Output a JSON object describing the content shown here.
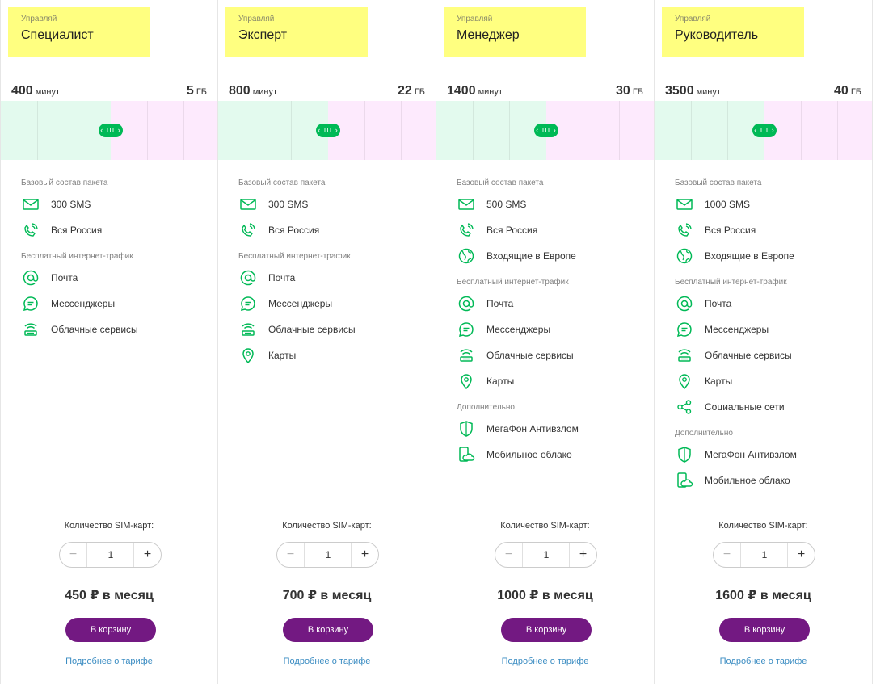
{
  "plans": [
    {
      "subtitle": "Управляй",
      "name": "Специалист",
      "minutes_value": "400",
      "minutes_unit": "минут",
      "data_value": "5",
      "data_unit": "ГБ",
      "sections": [
        {
          "heading": "Базовый состав пакета",
          "items": [
            {
              "icon": "envelope-icon",
              "label": "300 SMS"
            },
            {
              "icon": "phone-waves-icon",
              "label": "Вся Россия"
            }
          ]
        },
        {
          "heading": "Бесплатный интернет-трафик",
          "items": [
            {
              "icon": "at-icon",
              "label": "Почта"
            },
            {
              "icon": "chat-bubble-icon",
              "label": "Мессенджеры"
            },
            {
              "icon": "cloud-router-icon",
              "label": "Облачные сервисы"
            }
          ]
        }
      ],
      "sim_label": "Количество SIM-карт:",
      "minus": "−",
      "quantity": "1",
      "plus": "+",
      "price": "450 ₽ в месяц",
      "cart_button": "В корзину",
      "more_link": "Подробнее о тарифе"
    },
    {
      "subtitle": "Управляй",
      "name": "Эксперт",
      "minutes_value": "800",
      "minutes_unit": "минут",
      "data_value": "22",
      "data_unit": "ГБ",
      "sections": [
        {
          "heading": "Базовый состав пакета",
          "items": [
            {
              "icon": "envelope-icon",
              "label": "300 SMS"
            },
            {
              "icon": "phone-waves-icon",
              "label": "Вся Россия"
            }
          ]
        },
        {
          "heading": "Бесплатный интернет-трафик",
          "items": [
            {
              "icon": "at-icon",
              "label": "Почта"
            },
            {
              "icon": "chat-bubble-icon",
              "label": "Мессенджеры"
            },
            {
              "icon": "cloud-router-icon",
              "label": "Облачные сервисы"
            },
            {
              "icon": "map-pin-icon",
              "label": "Карты"
            }
          ]
        }
      ],
      "sim_label": "Количество SIM-карт:",
      "minus": "−",
      "quantity": "1",
      "plus": "+",
      "price": "700 ₽ в месяц",
      "cart_button": "В корзину",
      "more_link": "Подробнее о тарифе"
    },
    {
      "subtitle": "Управляй",
      "name": "Менеджер",
      "minutes_value": "1400",
      "minutes_unit": "минут",
      "data_value": "30",
      "data_unit": "ГБ",
      "sections": [
        {
          "heading": "Базовый состав пакета",
          "items": [
            {
              "icon": "envelope-icon",
              "label": "500 SMS"
            },
            {
              "icon": "phone-waves-icon",
              "label": "Вся Россия"
            },
            {
              "icon": "globe-icon",
              "label": "Входящие в Европе"
            }
          ]
        },
        {
          "heading": "Бесплатный интернет-трафик",
          "items": [
            {
              "icon": "at-icon",
              "label": "Почта"
            },
            {
              "icon": "chat-bubble-icon",
              "label": "Мессенджеры"
            },
            {
              "icon": "cloud-router-icon",
              "label": "Облачные сервисы"
            },
            {
              "icon": "map-pin-icon",
              "label": "Карты"
            }
          ]
        },
        {
          "heading": "Дополнительно",
          "items": [
            {
              "icon": "shield-icon",
              "label": "МегаФон Антивзлом"
            },
            {
              "icon": "mobile-cloud-icon",
              "label": "Мобильное облако"
            }
          ]
        }
      ],
      "sim_label": "Количество SIM-карт:",
      "minus": "−",
      "quantity": "1",
      "plus": "+",
      "price": "1000 ₽ в месяц",
      "cart_button": "В корзину",
      "more_link": "Подробнее о тарифе"
    },
    {
      "subtitle": "Управляй",
      "name": "Руководитель",
      "minutes_value": "3500",
      "minutes_unit": "минут",
      "data_value": "40",
      "data_unit": "ГБ",
      "sections": [
        {
          "heading": "Базовый состав пакета",
          "items": [
            {
              "icon": "envelope-icon",
              "label": "1000 SMS"
            },
            {
              "icon": "phone-waves-icon",
              "label": "Вся Россия"
            },
            {
              "icon": "globe-icon",
              "label": "Входящие в Европе"
            }
          ]
        },
        {
          "heading": "Бесплатный интернет-трафик",
          "items": [
            {
              "icon": "at-icon",
              "label": "Почта"
            },
            {
              "icon": "chat-bubble-icon",
              "label": "Мессенджеры"
            },
            {
              "icon": "cloud-router-icon",
              "label": "Облачные сервисы"
            },
            {
              "icon": "map-pin-icon",
              "label": "Карты"
            },
            {
              "icon": "share-icon",
              "label": "Социальные сети"
            }
          ]
        },
        {
          "heading": "Дополнительно",
          "items": [
            {
              "icon": "shield-icon",
              "label": "МегаФон Антивзлом"
            },
            {
              "icon": "mobile-cloud-icon",
              "label": "Мобильное облако"
            }
          ]
        }
      ],
      "sim_label": "Количество SIM-карт:",
      "minus": "−",
      "quantity": "1",
      "plus": "+",
      "price": "1600 ₽ в месяц",
      "cart_button": "В корзину",
      "more_link": "Подробнее о тарифе"
    }
  ],
  "slider_handle_glyph": "‹ ııı ›",
  "colors": {
    "title_bg": "#ffff80",
    "accent_green": "#00b956",
    "slider_left": "#e3faee",
    "slider_right": "#fdeafd",
    "button_purple": "#731982",
    "link_blue": "#3a8cc2"
  }
}
